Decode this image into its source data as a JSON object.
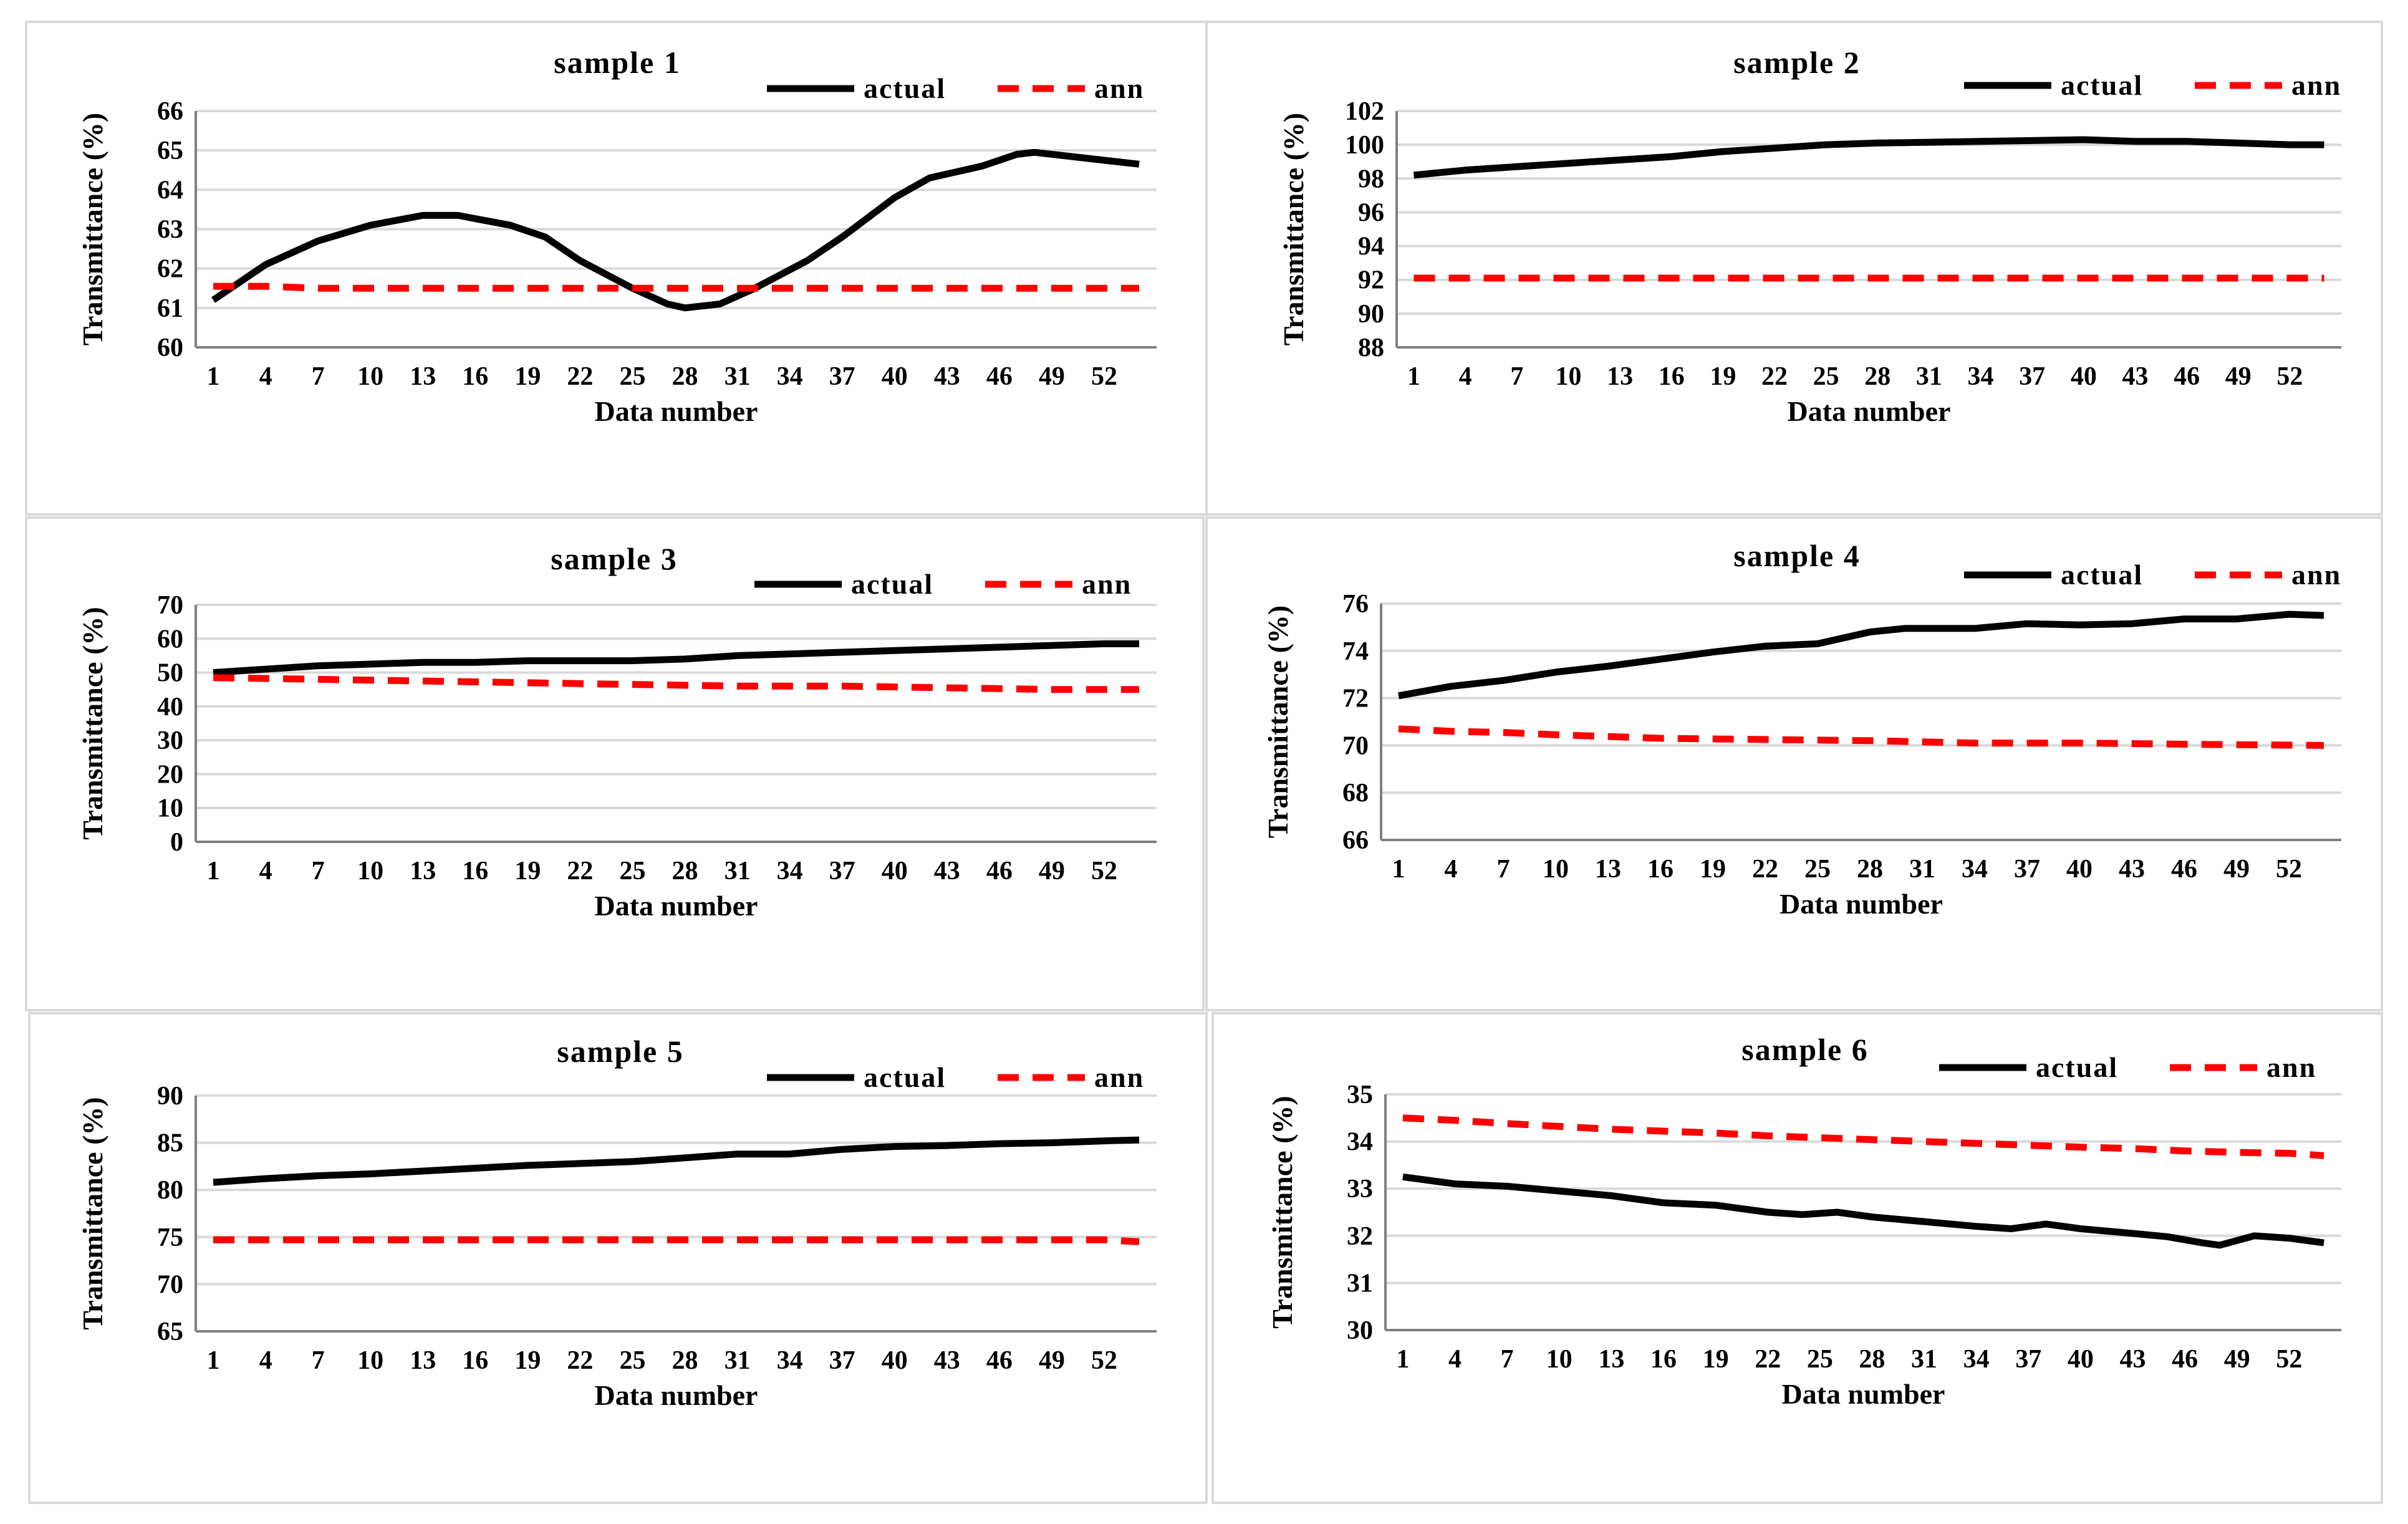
{
  "chart_data": [
    {
      "type": "line",
      "title": "sample 1",
      "xlabel": "Data number",
      "ylabel": "Transmittance  (%)",
      "ylim": [
        60,
        66
      ],
      "yticks": [
        60,
        61,
        62,
        63,
        64,
        65,
        66
      ],
      "xticks": [
        1,
        4,
        7,
        10,
        13,
        16,
        19,
        22,
        25,
        28,
        31,
        34,
        37,
        40,
        43,
        46,
        49,
        52
      ],
      "grid": true,
      "legend": "top-right",
      "series": [
        {
          "name": "actual",
          "color": "#000000",
          "dash": false,
          "points": [
            [
              1,
              61.2
            ],
            [
              4,
              62.1
            ],
            [
              7,
              62.7
            ],
            [
              10,
              63.1
            ],
            [
              13,
              63.35
            ],
            [
              15,
              63.35
            ],
            [
              18,
              63.1
            ],
            [
              20,
              62.8
            ],
            [
              22,
              62.2
            ],
            [
              25,
              61.5
            ],
            [
              27,
              61.1
            ],
            [
              28,
              61.0
            ],
            [
              30,
              61.1
            ],
            [
              32,
              61.5
            ],
            [
              35,
              62.2
            ],
            [
              37,
              62.8
            ],
            [
              40,
              63.8
            ],
            [
              42,
              64.3
            ],
            [
              45,
              64.6
            ],
            [
              47,
              64.9
            ],
            [
              48,
              64.95
            ],
            [
              50,
              64.85
            ],
            [
              52,
              64.75
            ],
            [
              54,
              64.65
            ]
          ]
        },
        {
          "name": "ann",
          "color": "#ff0000",
          "dash": true,
          "points": [
            [
              1,
              61.55
            ],
            [
              4,
              61.55
            ],
            [
              7,
              61.5
            ],
            [
              54,
              61.5
            ]
          ]
        }
      ]
    },
    {
      "type": "line",
      "title": "sample 2",
      "xlabel": "Data number",
      "ylabel": "Transmittance  (%)",
      "ylim": [
        88,
        102
      ],
      "yticks": [
        88,
        90,
        92,
        94,
        96,
        98,
        100,
        102
      ],
      "xticks": [
        1,
        4,
        7,
        10,
        13,
        16,
        19,
        22,
        25,
        28,
        31,
        34,
        37,
        40,
        43,
        46,
        49,
        52
      ],
      "grid": true,
      "legend": "top-right",
      "series": [
        {
          "name": "actual",
          "color": "#000000",
          "dash": false,
          "points": [
            [
              1,
              98.2
            ],
            [
              4,
              98.5
            ],
            [
              7,
              98.7
            ],
            [
              10,
              98.9
            ],
            [
              13,
              99.1
            ],
            [
              16,
              99.3
            ],
            [
              19,
              99.6
            ],
            [
              22,
              99.8
            ],
            [
              25,
              100.0
            ],
            [
              28,
              100.1
            ],
            [
              31,
              100.15
            ],
            [
              34,
              100.2
            ],
            [
              37,
              100.25
            ],
            [
              40,
              100.3
            ],
            [
              43,
              100.2
            ],
            [
              46,
              100.2
            ],
            [
              49,
              100.1
            ],
            [
              52,
              100.0
            ],
            [
              54,
              100.0
            ]
          ]
        },
        {
          "name": "ann",
          "color": "#ff0000",
          "dash": true,
          "points": [
            [
              1,
              92.1
            ],
            [
              54,
              92.1
            ]
          ]
        }
      ]
    },
    {
      "type": "line",
      "title": "sample 3",
      "xlabel": "Data number",
      "ylabel": "Transmittance  (%)",
      "ylim": [
        0,
        70
      ],
      "yticks": [
        0,
        10,
        20,
        30,
        40,
        50,
        60,
        70
      ],
      "xticks": [
        1,
        4,
        7,
        10,
        13,
        16,
        19,
        22,
        25,
        28,
        31,
        34,
        37,
        40,
        43,
        46,
        49,
        52
      ],
      "grid": true,
      "legend": "top-right",
      "series": [
        {
          "name": "actual",
          "color": "#000000",
          "dash": false,
          "points": [
            [
              1,
              50
            ],
            [
              4,
              51
            ],
            [
              7,
              52
            ],
            [
              10,
              52.5
            ],
            [
              13,
              53
            ],
            [
              16,
              53
            ],
            [
              19,
              53.5
            ],
            [
              22,
              53.5
            ],
            [
              25,
              53.5
            ],
            [
              28,
              54
            ],
            [
              31,
              55
            ],
            [
              34,
              55.5
            ],
            [
              37,
              56
            ],
            [
              40,
              56.5
            ],
            [
              43,
              57
            ],
            [
              46,
              57.5
            ],
            [
              49,
              58
            ],
            [
              52,
              58.5
            ],
            [
              54,
              58.5
            ]
          ]
        },
        {
          "name": "ann",
          "color": "#ff0000",
          "dash": true,
          "points": [
            [
              1,
              48.5
            ],
            [
              7,
              48
            ],
            [
              13,
              47.5
            ],
            [
              19,
              47
            ],
            [
              25,
              46.5
            ],
            [
              31,
              46
            ],
            [
              37,
              46
            ],
            [
              43,
              45.5
            ],
            [
              49,
              45
            ],
            [
              54,
              45
            ]
          ]
        }
      ]
    },
    {
      "type": "line",
      "title": "sample 4",
      "xlabel": "Data number",
      "ylabel": "Transmittance  (%)",
      "ylim": [
        66,
        76
      ],
      "yticks": [
        66,
        68,
        70,
        72,
        74,
        76
      ],
      "xticks": [
        1,
        4,
        7,
        10,
        13,
        16,
        19,
        22,
        25,
        28,
        31,
        34,
        37,
        40,
        43,
        46,
        49,
        52
      ],
      "grid": true,
      "legend": "top-right",
      "series": [
        {
          "name": "actual",
          "color": "#000000",
          "dash": false,
          "points": [
            [
              1,
              72.1
            ],
            [
              4,
              72.5
            ],
            [
              7,
              72.75
            ],
            [
              10,
              73.1
            ],
            [
              13,
              73.35
            ],
            [
              16,
              73.65
            ],
            [
              19,
              73.95
            ],
            [
              22,
              74.2
            ],
            [
              25,
              74.3
            ],
            [
              28,
              74.8
            ],
            [
              30,
              74.95
            ],
            [
              34,
              74.95
            ],
            [
              37,
              75.15
            ],
            [
              40,
              75.1
            ],
            [
              43,
              75.15
            ],
            [
              46,
              75.35
            ],
            [
              49,
              75.35
            ],
            [
              52,
              75.55
            ],
            [
              54,
              75.5
            ]
          ]
        },
        {
          "name": "ann",
          "color": "#ff0000",
          "dash": true,
          "points": [
            [
              1,
              70.7
            ],
            [
              4,
              70.6
            ],
            [
              7,
              70.55
            ],
            [
              10,
              70.45
            ],
            [
              16,
              70.3
            ],
            [
              22,
              70.25
            ],
            [
              28,
              70.2
            ],
            [
              34,
              70.1
            ],
            [
              40,
              70.1
            ],
            [
              46,
              70.05
            ],
            [
              54,
              70.0
            ]
          ]
        }
      ]
    },
    {
      "type": "line",
      "title": "sample 5",
      "xlabel": "Data number",
      "ylabel": "Transmittance  (%)",
      "ylim": [
        65,
        90
      ],
      "yticks": [
        65,
        70,
        75,
        80,
        85,
        90
      ],
      "xticks": [
        1,
        4,
        7,
        10,
        13,
        16,
        19,
        22,
        25,
        28,
        31,
        34,
        37,
        40,
        43,
        46,
        49,
        52
      ],
      "grid": true,
      "legend": "top-right",
      "series": [
        {
          "name": "actual",
          "color": "#000000",
          "dash": false,
          "points": [
            [
              1,
              80.8
            ],
            [
              4,
              81.2
            ],
            [
              7,
              81.5
            ],
            [
              10,
              81.7
            ],
            [
              13,
              82.0
            ],
            [
              16,
              82.3
            ],
            [
              19,
              82.6
            ],
            [
              22,
              82.8
            ],
            [
              25,
              83.0
            ],
            [
              28,
              83.4
            ],
            [
              31,
              83.8
            ],
            [
              34,
              83.8
            ],
            [
              37,
              84.3
            ],
            [
              40,
              84.6
            ],
            [
              43,
              84.7
            ],
            [
              46,
              84.9
            ],
            [
              49,
              85.0
            ],
            [
              52,
              85.2
            ],
            [
              54,
              85.3
            ]
          ]
        },
        {
          "name": "ann",
          "color": "#ff0000",
          "dash": true,
          "points": [
            [
              1,
              74.7
            ],
            [
              52,
              74.7
            ],
            [
              54,
              74.5
            ]
          ]
        }
      ]
    },
    {
      "type": "line",
      "title": "sample 6",
      "xlabel": "Data number",
      "ylabel": "Transmittance  (%)",
      "ylim": [
        30,
        35
      ],
      "yticks": [
        30,
        31,
        32,
        33,
        34,
        35
      ],
      "xticks": [
        1,
        4,
        7,
        10,
        13,
        16,
        19,
        22,
        25,
        28,
        31,
        34,
        37,
        40,
        43,
        46,
        49,
        52
      ],
      "grid": true,
      "legend": "top-right",
      "series": [
        {
          "name": "actual",
          "color": "#000000",
          "dash": false,
          "points": [
            [
              1,
              33.25
            ],
            [
              4,
              33.1
            ],
            [
              7,
              33.05
            ],
            [
              10,
              32.95
            ],
            [
              13,
              32.85
            ],
            [
              16,
              32.7
            ],
            [
              19,
              32.65
            ],
            [
              22,
              32.5
            ],
            [
              24,
              32.45
            ],
            [
              26,
              32.5
            ],
            [
              28,
              32.4
            ],
            [
              31,
              32.3
            ],
            [
              34,
              32.2
            ],
            [
              36,
              32.15
            ],
            [
              38,
              32.25
            ],
            [
              40,
              32.15
            ],
            [
              43,
              32.05
            ],
            [
              45,
              31.98
            ],
            [
              47,
              31.85
            ],
            [
              48,
              31.8
            ],
            [
              50,
              32.0
            ],
            [
              52,
              31.95
            ],
            [
              54,
              31.85
            ]
          ]
        },
        {
          "name": "ann",
          "color": "#ff0000",
          "dash": true,
          "points": [
            [
              1,
              34.5
            ],
            [
              4,
              34.45
            ],
            [
              7,
              34.38
            ],
            [
              10,
              34.32
            ],
            [
              13,
              34.26
            ],
            [
              16,
              34.22
            ],
            [
              19,
              34.18
            ],
            [
              22,
              34.12
            ],
            [
              25,
              34.08
            ],
            [
              28,
              34.04
            ],
            [
              31,
              34.0
            ],
            [
              34,
              33.96
            ],
            [
              37,
              33.92
            ],
            [
              40,
              33.88
            ],
            [
              43,
              33.85
            ],
            [
              46,
              33.8
            ],
            [
              49,
              33.77
            ],
            [
              52,
              33.75
            ],
            [
              54,
              33.7
            ]
          ]
        }
      ]
    }
  ]
}
